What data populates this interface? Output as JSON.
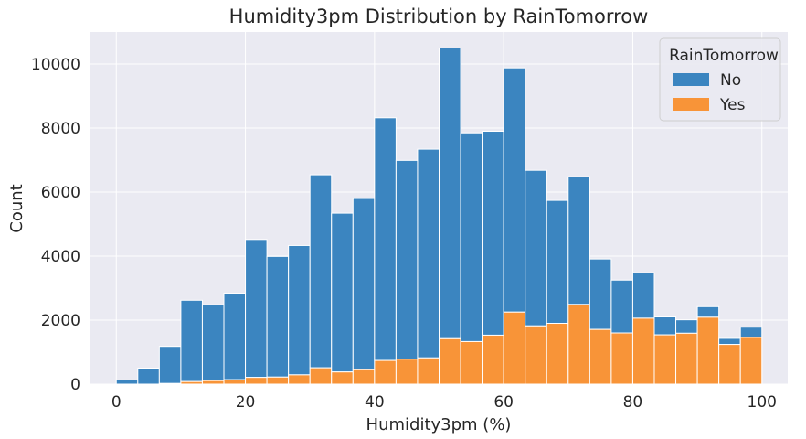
{
  "chart_data": {
    "type": "bar",
    "title": "Humidity3pm Distribution by RainTomorrow",
    "xlabel": "Humidity3pm (%)",
    "ylabel": "Count",
    "xlim": [
      -4,
      104
    ],
    "ylim": [
      0,
      11000
    ],
    "xticks": [
      0,
      20,
      40,
      60,
      80,
      100
    ],
    "yticks": [
      0,
      2000,
      4000,
      6000,
      8000,
      10000
    ],
    "grid": true,
    "stacked": true,
    "bin_width": 3.333,
    "bin_edges_start": [
      0,
      3.333,
      6.667,
      10,
      13.333,
      16.667,
      20,
      23.333,
      26.667,
      30,
      33.333,
      36.667,
      40,
      43.333,
      46.667,
      50,
      53.333,
      56.667,
      60,
      63.333,
      66.667,
      70,
      73.333,
      76.667,
      80,
      83.333,
      86.667,
      90,
      93.333,
      96.667
    ],
    "legend": {
      "title": "RainTomorrow",
      "placement": "top-right"
    },
    "series": [
      {
        "name": "No",
        "color": "#3b85c0",
        "totals": [
          130,
          500,
          1180,
          2620,
          2480,
          2840,
          4520,
          3990,
          4330,
          6540,
          5340,
          5800,
          8320,
          6990,
          7340,
          10500,
          7850,
          7900,
          9880,
          6680,
          5740,
          6480,
          3910,
          3250,
          3480,
          2100,
          2010,
          2420,
          1430,
          1780
        ]
      },
      {
        "name": "Yes",
        "color": "#f89438",
        "values": [
          0,
          0,
          20,
          80,
          110,
          140,
          210,
          220,
          290,
          510,
          380,
          450,
          740,
          780,
          820,
          1420,
          1330,
          1530,
          2250,
          1820,
          1900,
          2490,
          1710,
          1600,
          2060,
          1540,
          1590,
          2090,
          1240,
          1460
        ]
      }
    ]
  }
}
